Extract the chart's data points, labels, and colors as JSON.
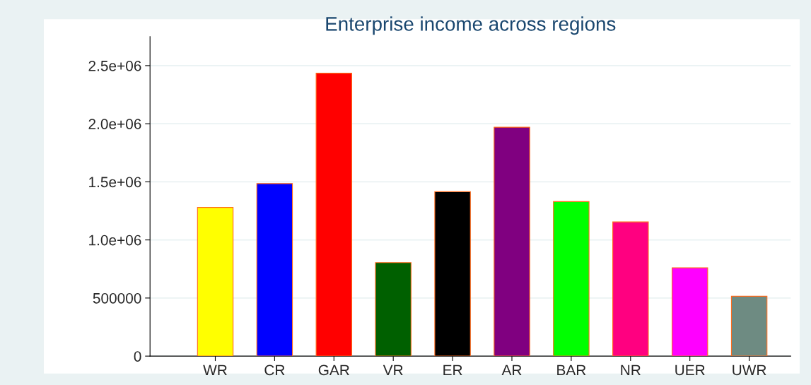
{
  "chart_data": {
    "type": "bar",
    "title": "Enterprise income across regions",
    "categories": [
      "WR",
      "CR",
      "GAR",
      "VR",
      "ER",
      "AR",
      "BAR",
      "NR",
      "UER",
      "UWR"
    ],
    "values": [
      1280000,
      1485000,
      2435000,
      805000,
      1415000,
      1970000,
      1330000,
      1155000,
      760000,
      515000
    ],
    "colors": [
      "#ffff00",
      "#0000ff",
      "#ff0000",
      "#006000",
      "#000000",
      "#800080",
      "#00ff00",
      "#ff0080",
      "#ff00ff",
      "#6e8b82"
    ],
    "ylim": [
      0,
      2750000
    ],
    "yticks": [
      0,
      500000,
      {
        "value": 1000000,
        "label": "1.0e+06"
      },
      {
        "value": 1500000,
        "label": "1.5e+06"
      },
      {
        "value": 2000000,
        "label": "2.0e+06"
      },
      {
        "value": 2500000,
        "label": "2.5e+06"
      }
    ],
    "grid": "y",
    "legend": false
  }
}
